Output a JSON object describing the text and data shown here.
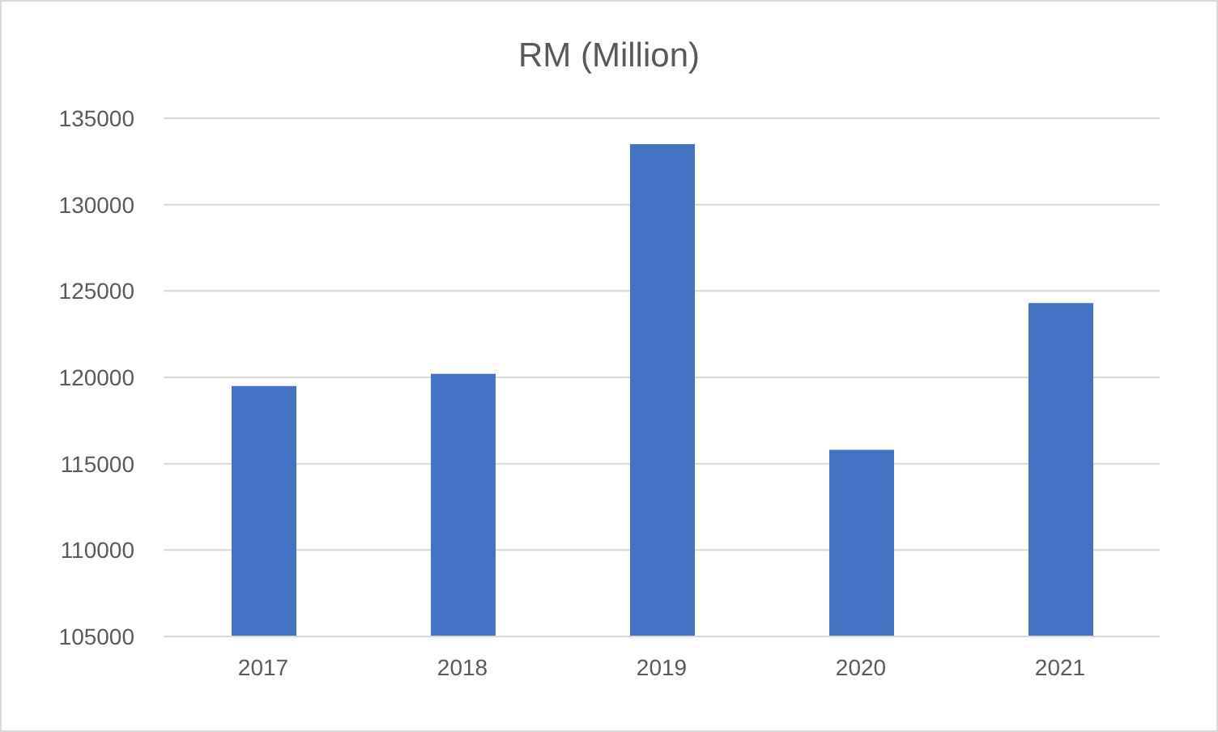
{
  "chart_data": {
    "type": "bar",
    "title": "RM (Million)",
    "categories": [
      "2017",
      "2018",
      "2019",
      "2020",
      "2021"
    ],
    "values": [
      119500,
      120200,
      133500,
      115800,
      124300
    ],
    "color": "#4472c4",
    "ylim": [
      105000,
      135000
    ],
    "yticks": [
      105000,
      110000,
      115000,
      120000,
      125000,
      130000,
      135000
    ],
    "grid": "y"
  }
}
